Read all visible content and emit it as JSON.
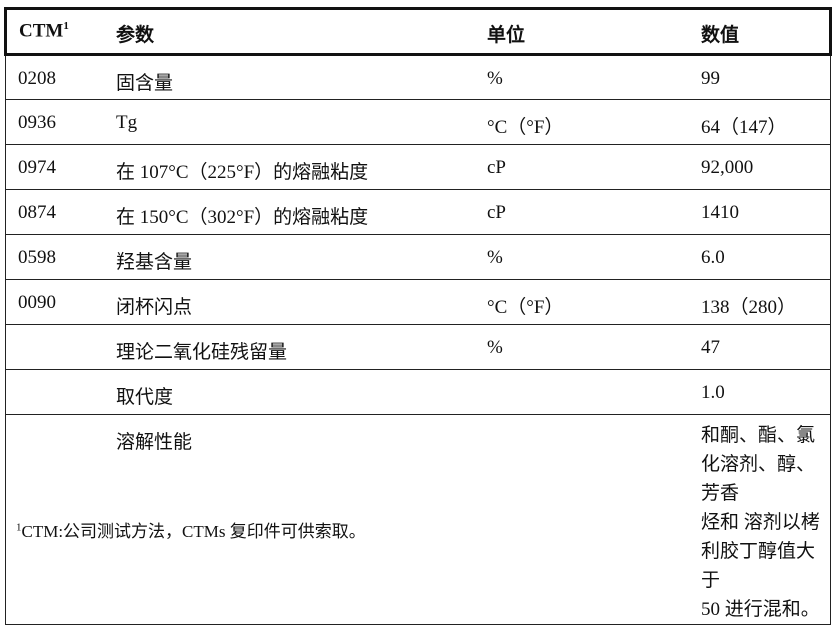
{
  "header": {
    "ctm": "CTM",
    "ctm_sup": "1",
    "param": "参数",
    "unit": "单位",
    "value": "数值"
  },
  "rows": [
    {
      "ctm": "0208",
      "param": "固含量",
      "unit": "%",
      "value": "99"
    },
    {
      "ctm": "0936",
      "param": "Tg",
      "unit": "°C（°F）",
      "value": "64（147）"
    },
    {
      "ctm": "0974",
      "param": "在 107°C（225°F）的熔融粘度",
      "unit": "cP",
      "value": "92,000"
    },
    {
      "ctm": "0874",
      "param": "在 150°C（302°F）的熔融粘度",
      "unit": "cP",
      "value": "1410"
    },
    {
      "ctm": "0598",
      "param": "羟基含量",
      "unit": "%",
      "value": "6.0"
    },
    {
      "ctm": "0090",
      "param": "闭杯闪点",
      "unit": "°C（°F）",
      "value": "138（280）"
    },
    {
      "ctm": "",
      "param": "理论二氧化硅残留量",
      "unit": "%",
      "value": "47"
    },
    {
      "ctm": "",
      "param": "取代度",
      "unit": "",
      "value": "1.0"
    }
  ],
  "solubility": {
    "param": "溶解性能",
    "lines": [
      "和酮、酯、氯化溶剂、醇、芳香",
      "烃和 溶剂以栲利胶丁醇值大于",
      "50 进行混和。"
    ]
  },
  "footnote": {
    "sup": "1",
    "text": "CTM:公司测试方法，CTMs 复印件可供索取。"
  }
}
